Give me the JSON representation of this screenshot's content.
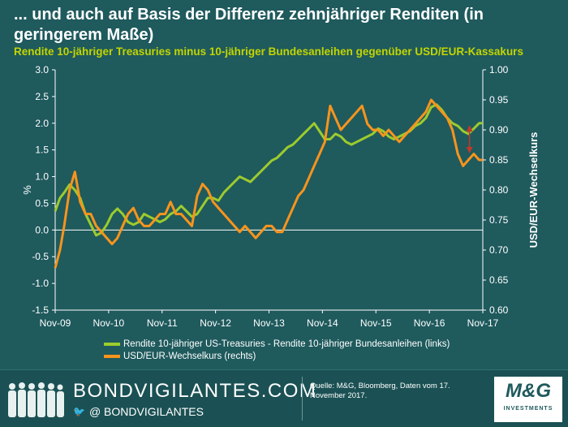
{
  "title": "... und auch auf Basis der Differenz zehnjähriger Renditen (in geringerem Maße)",
  "subtitle": "Rendite 10-jähriger Treasuries minus 10-jähriger Bundesanleihen gegenüber USD/EUR-Kassakurs",
  "colors": {
    "green_series": "#9ccb2e",
    "orange_series": "#f7941d",
    "arrow": "#c0392b",
    "axis_text": "#ffffff"
  },
  "chart_data": {
    "type": "line",
    "x_ticks": [
      "Nov-09",
      "Nov-10",
      "Nov-11",
      "Nov-12",
      "Nov-13",
      "Nov-14",
      "Nov-15",
      "Nov-16",
      "Nov-17"
    ],
    "x_range": [
      2009.83,
      2017.87
    ],
    "ylabel_left": "%",
    "ylabel_right": "USD/EUR-Wechselkurs",
    "ylim_left": [
      -1.5,
      3.0
    ],
    "ylim_right": [
      0.6,
      1.0
    ],
    "y_ticks_left": [
      "-1.5",
      "-1.0",
      "-0.5",
      "0.0",
      "0.5",
      "1.0",
      "1.5",
      "2.0",
      "2.5",
      "3.0"
    ],
    "y_ticks_right": [
      "0.60",
      "0.65",
      "0.70",
      "0.75",
      "0.80",
      "0.85",
      "0.90",
      "0.95",
      "1.00"
    ],
    "series": [
      {
        "name": "Rendite 10-jähriger US-Treasuries - Rendite 10-jähriger Bundesanleihen (links)",
        "axis": "left",
        "x": [
          2009.83,
          2009.92,
          2010.0,
          2010.1,
          2010.2,
          2010.3,
          2010.4,
          2010.5,
          2010.6,
          2010.7,
          2010.8,
          2010.9,
          2011.0,
          2011.1,
          2011.2,
          2011.3,
          2011.4,
          2011.5,
          2011.6,
          2011.7,
          2011.8,
          2011.9,
          2012.0,
          2012.1,
          2012.2,
          2012.3,
          2012.4,
          2012.5,
          2012.6,
          2012.7,
          2012.8,
          2012.9,
          2013.0,
          2013.1,
          2013.2,
          2013.3,
          2013.4,
          2013.5,
          2013.6,
          2013.7,
          2013.8,
          2013.9,
          2014.0,
          2014.1,
          2014.2,
          2014.3,
          2014.4,
          2014.5,
          2014.6,
          2014.7,
          2014.8,
          2014.9,
          2015.0,
          2015.1,
          2015.2,
          2015.3,
          2015.4,
          2015.5,
          2015.6,
          2015.7,
          2015.8,
          2015.9,
          2016.0,
          2016.1,
          2016.2,
          2016.3,
          2016.4,
          2016.5,
          2016.6,
          2016.7,
          2016.8,
          2016.9,
          2017.0,
          2017.1,
          2017.2,
          2017.3,
          2017.4,
          2017.5,
          2017.6,
          2017.7,
          2017.8,
          2017.87
        ],
        "values": [
          0.35,
          0.6,
          0.7,
          0.85,
          0.75,
          0.6,
          0.3,
          0.1,
          -0.1,
          -0.05,
          0.1,
          0.3,
          0.4,
          0.3,
          0.15,
          0.1,
          0.15,
          0.3,
          0.25,
          0.2,
          0.15,
          0.2,
          0.3,
          0.35,
          0.45,
          0.35,
          0.25,
          0.3,
          0.45,
          0.6,
          0.6,
          0.55,
          0.7,
          0.8,
          0.9,
          1.0,
          0.95,
          0.9,
          1.0,
          1.1,
          1.2,
          1.3,
          1.35,
          1.45,
          1.55,
          1.6,
          1.7,
          1.8,
          1.9,
          2.0,
          1.85,
          1.7,
          1.7,
          1.8,
          1.75,
          1.65,
          1.6,
          1.65,
          1.7,
          1.75,
          1.8,
          1.9,
          1.85,
          1.75,
          1.7,
          1.75,
          1.8,
          1.85,
          1.95,
          2.0,
          2.1,
          2.3,
          2.35,
          2.25,
          2.1,
          2.0,
          1.95,
          1.85,
          1.8,
          1.9,
          2.0,
          2.0
        ]
      },
      {
        "name": "USD/EUR-Wechselkurs (rechts)",
        "axis": "right",
        "x": [
          2009.83,
          2009.92,
          2010.0,
          2010.1,
          2010.2,
          2010.3,
          2010.4,
          2010.5,
          2010.6,
          2010.7,
          2010.8,
          2010.9,
          2011.0,
          2011.1,
          2011.2,
          2011.3,
          2011.4,
          2011.5,
          2011.6,
          2011.7,
          2011.8,
          2011.9,
          2012.0,
          2012.1,
          2012.2,
          2012.3,
          2012.4,
          2012.5,
          2012.6,
          2012.7,
          2012.8,
          2012.9,
          2013.0,
          2013.1,
          2013.2,
          2013.3,
          2013.4,
          2013.5,
          2013.6,
          2013.7,
          2013.8,
          2013.9,
          2014.0,
          2014.1,
          2014.2,
          2014.3,
          2014.4,
          2014.5,
          2014.6,
          2014.7,
          2014.8,
          2014.9,
          2015.0,
          2015.1,
          2015.2,
          2015.3,
          2015.4,
          2015.5,
          2015.6,
          2015.7,
          2015.8,
          2015.9,
          2016.0,
          2016.1,
          2016.2,
          2016.3,
          2016.4,
          2016.5,
          2016.6,
          2016.7,
          2016.8,
          2016.9,
          2017.0,
          2017.1,
          2017.2,
          2017.3,
          2017.4,
          2017.5,
          2017.6,
          2017.7,
          2017.8,
          2017.87
        ],
        "values": [
          0.67,
          0.7,
          0.74,
          0.8,
          0.83,
          0.78,
          0.76,
          0.76,
          0.74,
          0.73,
          0.72,
          0.71,
          0.72,
          0.74,
          0.76,
          0.77,
          0.75,
          0.74,
          0.74,
          0.75,
          0.76,
          0.76,
          0.78,
          0.76,
          0.76,
          0.75,
          0.74,
          0.79,
          0.81,
          0.8,
          0.78,
          0.77,
          0.76,
          0.75,
          0.74,
          0.73,
          0.74,
          0.73,
          0.72,
          0.73,
          0.74,
          0.74,
          0.73,
          0.73,
          0.75,
          0.77,
          0.79,
          0.8,
          0.82,
          0.84,
          0.86,
          0.88,
          0.94,
          0.92,
          0.9,
          0.91,
          0.92,
          0.93,
          0.94,
          0.91,
          0.9,
          0.9,
          0.89,
          0.9,
          0.89,
          0.88,
          0.89,
          0.9,
          0.91,
          0.92,
          0.93,
          0.95,
          0.94,
          0.93,
          0.92,
          0.9,
          0.86,
          0.84,
          0.85,
          0.86,
          0.85,
          0.85
        ]
      }
    ],
    "annotations": [
      "double-headed arrow near Nov-17 indicating divergence"
    ]
  },
  "legend": [
    {
      "label": "Rendite 10-jähriger US-Treasuries - Rendite 10-jähriger Bundesanleihen (links)",
      "color": "#9ccb2e"
    },
    {
      "label": "USD/EUR-Wechselkurs (rechts)",
      "color": "#f7941d"
    }
  ],
  "footer": {
    "brand": "BONDVIGILANTES.COM",
    "handle": "@ BONDVIGILANTES",
    "handle_icon": "twitter-bird-icon",
    "source": "Quelle: M&G, Bloomberg, Daten vom 17. November 2017.",
    "logo_main": "M&G",
    "logo_sub": "INVESTMENTS"
  }
}
